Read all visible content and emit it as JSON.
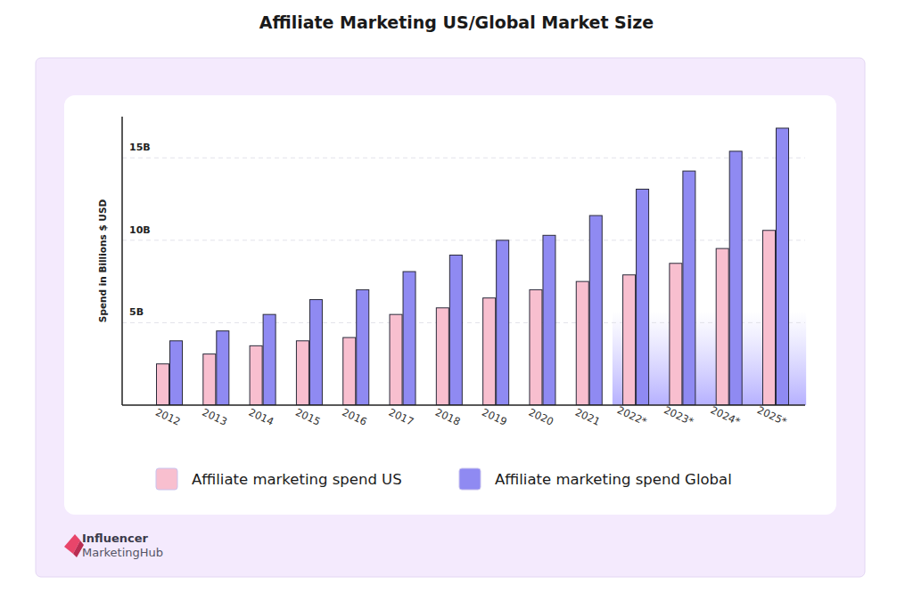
{
  "chart_data": {
    "type": "bar",
    "title": "Affiliate Marketing US/Global Market Size",
    "y_label": "Spend in Billions $ USD",
    "categories": [
      "2012",
      "2013",
      "2014",
      "2015",
      "2016",
      "2017",
      "2018",
      "2019",
      "2020",
      "2021",
      "2022*",
      "2023*",
      "2024*",
      "2025*"
    ],
    "series": [
      {
        "name": "Affiliate marketing spend US",
        "color": "#f8bfcf",
        "values": [
          2.5,
          3.1,
          3.6,
          3.9,
          4.1,
          5.5,
          5.9,
          6.5,
          7.0,
          7.5,
          7.9,
          8.6,
          9.5,
          10.6
        ]
      },
      {
        "name": "Affiliate marketing spend Global",
        "color": "#8f8af2",
        "values": [
          3.9,
          4.5,
          5.5,
          6.4,
          7.0,
          8.1,
          9.1,
          10.0,
          10.3,
          11.5,
          13.1,
          14.2,
          15.4,
          16.8
        ]
      }
    ],
    "ylim": [
      0,
      17.5
    ],
    "yticks": [
      {
        "value": 5,
        "label": "5B"
      },
      {
        "value": 10,
        "label": "10B"
      },
      {
        "value": 15,
        "label": "15B"
      }
    ],
    "grid": true,
    "legend": "bottom",
    "brand_lines": [
      "Influencer",
      "MarketingHub"
    ]
  }
}
